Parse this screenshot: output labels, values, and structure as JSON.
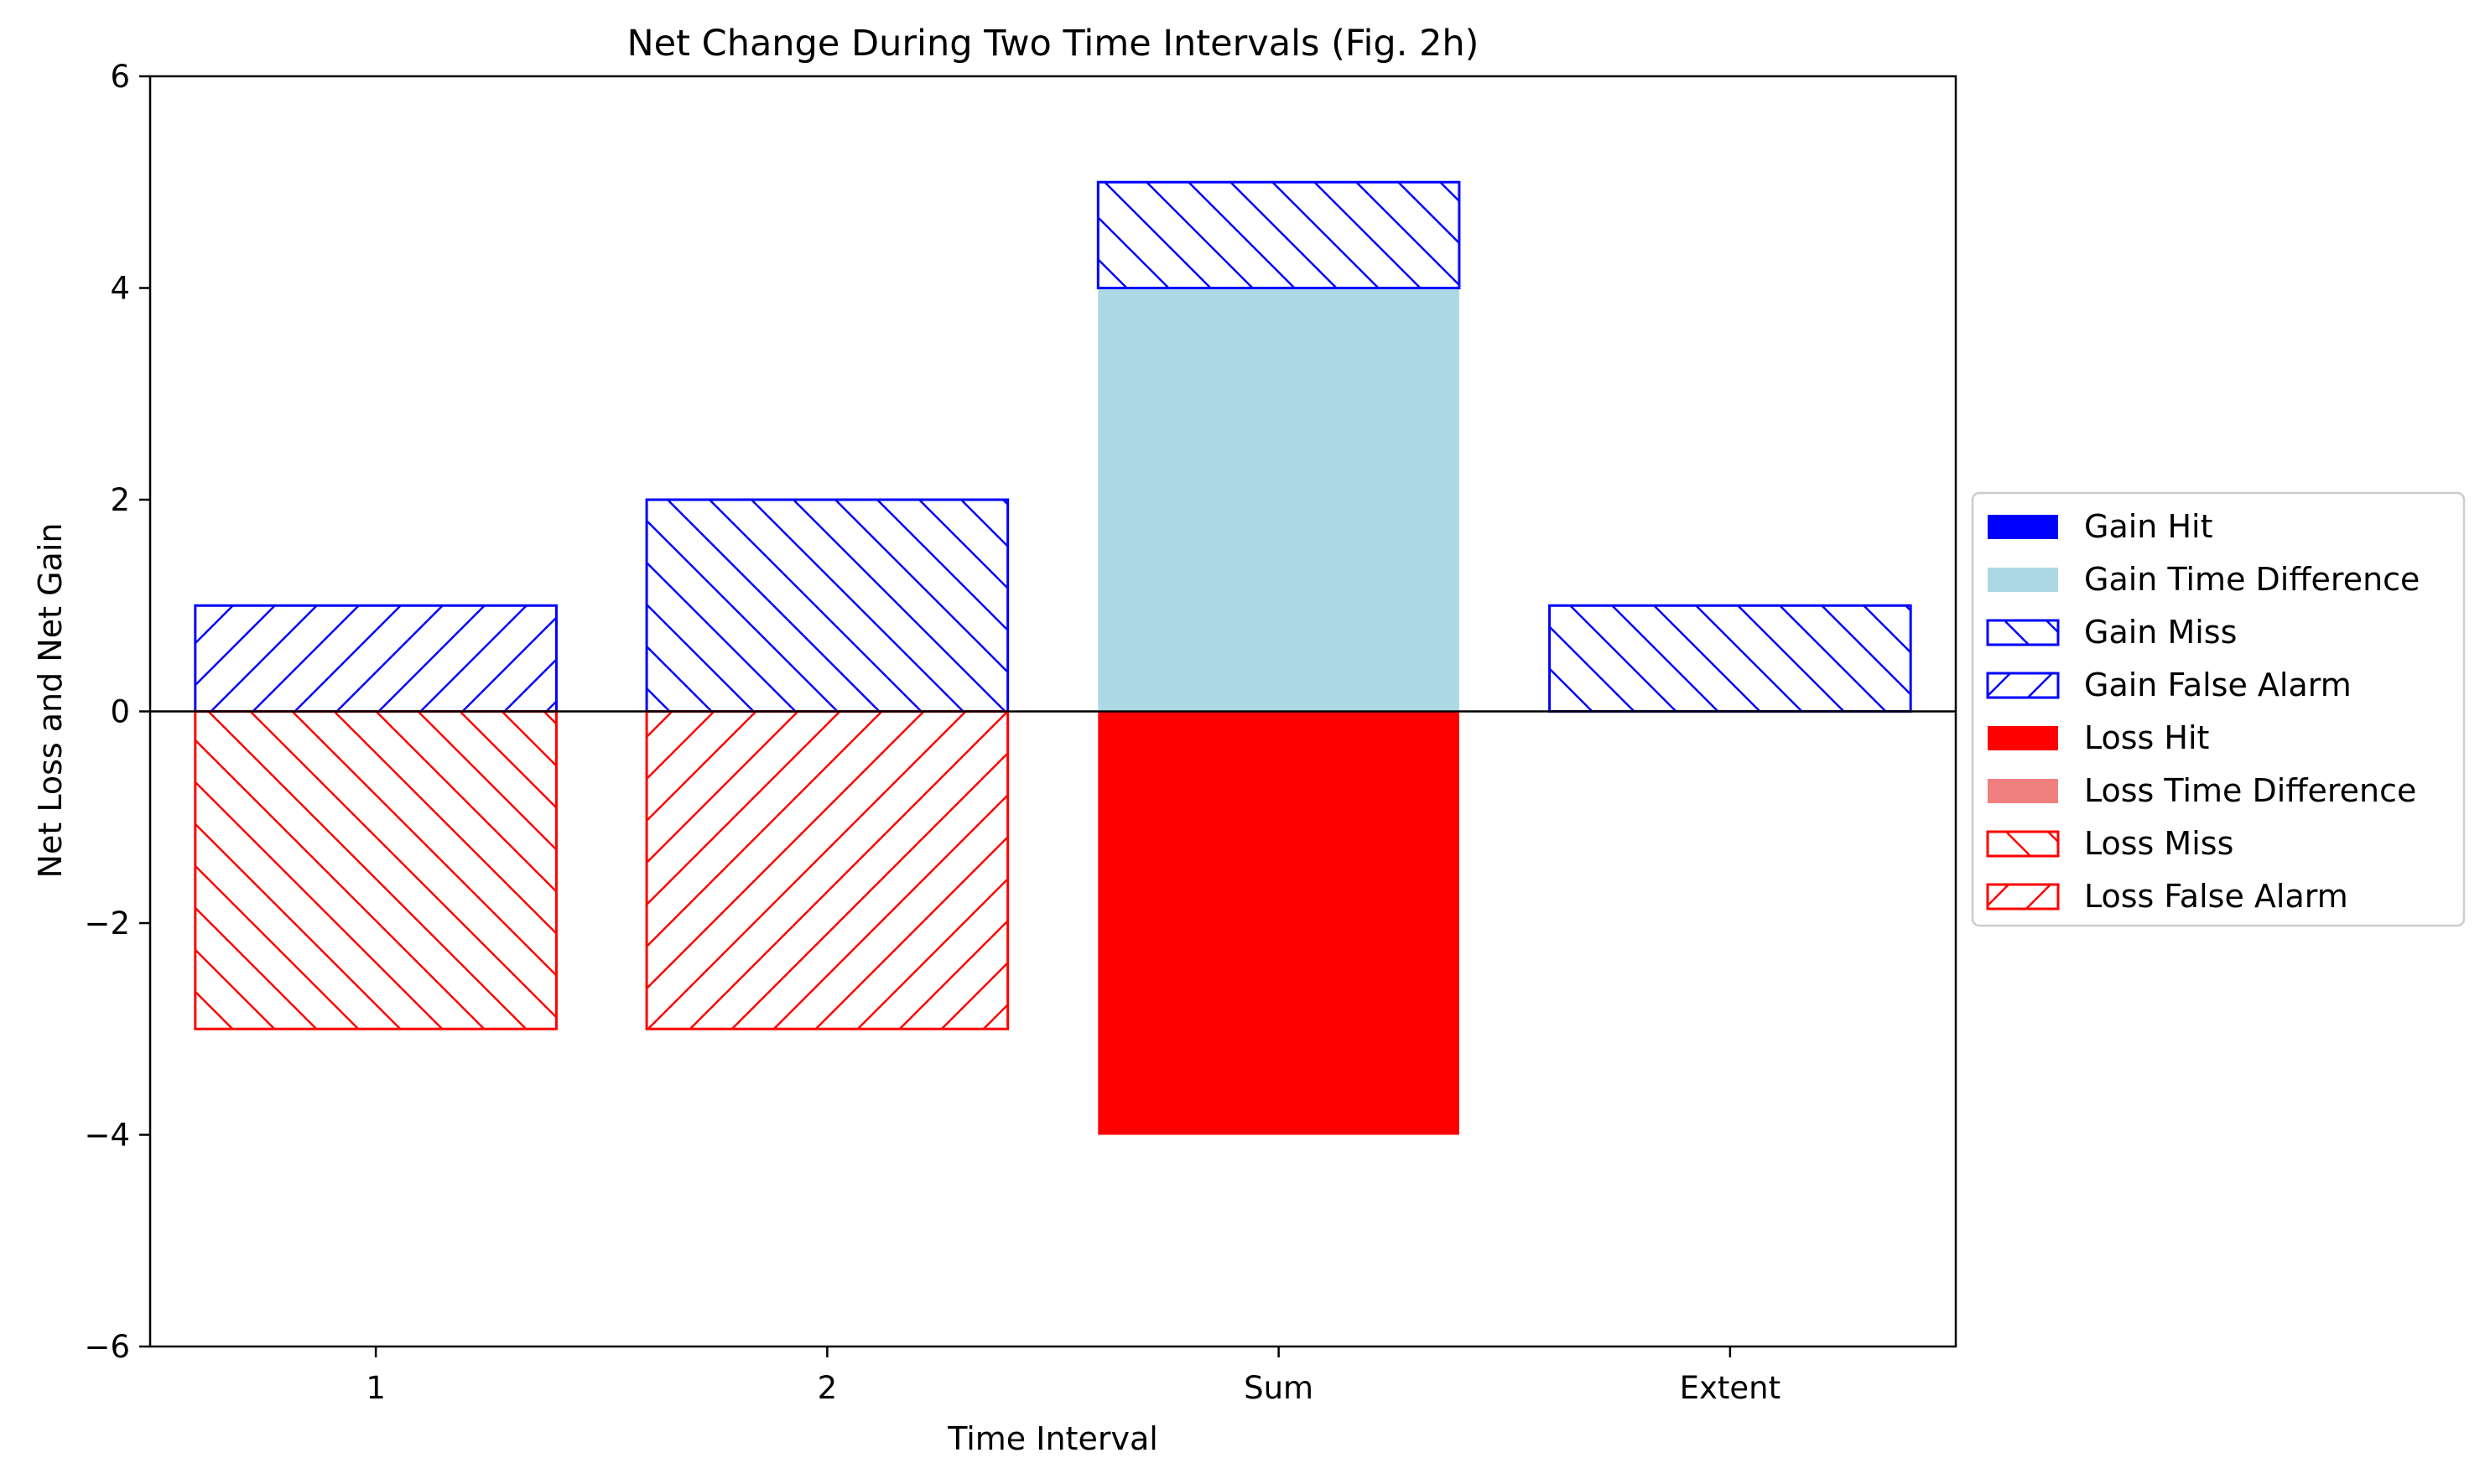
{
  "chart_data": {
    "type": "bar",
    "title": "Net Change During Two Time Intervals (Fig. 2h)",
    "xlabel": "Time Interval",
    "ylabel": "Net Loss and Net Gain",
    "categories": [
      "1",
      "2",
      "Sum",
      "Extent"
    ],
    "ylim": [
      -6,
      6
    ],
    "yticks": [
      -6,
      -4,
      -2,
      0,
      2,
      4,
      6
    ],
    "ytick_labels": [
      "−6",
      "−4",
      "−2",
      "0",
      "2",
      "4",
      "6"
    ],
    "grid": false,
    "zero_line": true,
    "legend_position": "right, outside plot area",
    "series": [
      {
        "name": "Gain Hit",
        "values": [
          0,
          0,
          0,
          0
        ],
        "color": "#0000ff",
        "hatch": "none",
        "style": "solid"
      },
      {
        "name": "Gain Time Difference",
        "values": [
          0,
          0,
          4,
          0
        ],
        "color": "#add8e6",
        "hatch": "none",
        "style": "solid"
      },
      {
        "name": "Gain Miss",
        "values": [
          0,
          2,
          1,
          1
        ],
        "color": "#0000ff",
        "hatch": "backslash",
        "style": "hatched"
      },
      {
        "name": "Gain False Alarm",
        "values": [
          1,
          0,
          0,
          0
        ],
        "color": "#0000ff",
        "hatch": "slash",
        "style": "hatched"
      },
      {
        "name": "Loss Hit",
        "values": [
          0,
          0,
          -4,
          0
        ],
        "color": "#ff0000",
        "hatch": "none",
        "style": "solid"
      },
      {
        "name": "Loss Time Difference",
        "values": [
          0,
          0,
          0,
          0
        ],
        "color": "#f08080",
        "hatch": "none",
        "style": "solid"
      },
      {
        "name": "Loss Miss",
        "values": [
          -3,
          0,
          0,
          0
        ],
        "color": "#ff0000",
        "hatch": "backslash",
        "style": "hatched"
      },
      {
        "name": "Loss False Alarm",
        "values": [
          0,
          -3,
          0,
          0
        ],
        "color": "#ff0000",
        "hatch": "slash",
        "style": "hatched"
      }
    ]
  }
}
